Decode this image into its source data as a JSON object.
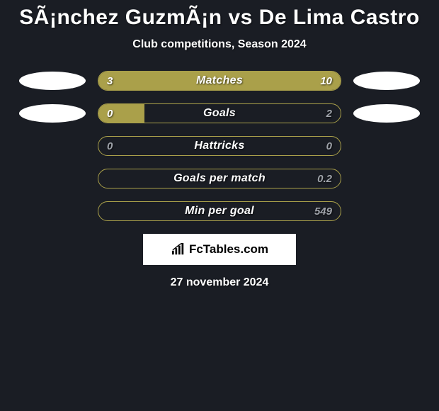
{
  "title": "SÃ¡nchez GuzmÃ¡n vs De Lima Castro",
  "subtitle": "Club competitions, Season 2024",
  "theme": {
    "background": "#1a1d24",
    "bar_border": "#aaa04a",
    "bar_fill": "#aaa04a",
    "text_color": "#ffffff",
    "value_on_fill_color": "#ffffff",
    "value_on_empty_color": "#9fa3aa"
  },
  "avatars": {
    "left_color": "#ffffff",
    "right_color": "#ffffff"
  },
  "rows": [
    {
      "label": "Matches",
      "left_value": "3",
      "right_value": "10",
      "left_fill_pct": 100,
      "right_fill_pct": 0,
      "left_val_color": "#ffffff",
      "right_val_color": "#ffffff",
      "show_avatars": true
    },
    {
      "label": "Goals",
      "left_value": "0",
      "right_value": "2",
      "left_fill_pct": 19,
      "right_fill_pct": 0,
      "left_val_color": "#ffffff",
      "right_val_color": "#9fa3aa",
      "show_avatars": true
    },
    {
      "label": "Hattricks",
      "left_value": "0",
      "right_value": "0",
      "left_fill_pct": 0,
      "right_fill_pct": 0,
      "left_val_color": "#9fa3aa",
      "right_val_color": "#9fa3aa",
      "show_avatars": false
    },
    {
      "label": "Goals per match",
      "left_value": "",
      "right_value": "0.2",
      "left_fill_pct": 0,
      "right_fill_pct": 0,
      "left_val_color": "#9fa3aa",
      "right_val_color": "#9fa3aa",
      "show_avatars": false
    },
    {
      "label": "Min per goal",
      "left_value": "",
      "right_value": "549",
      "left_fill_pct": 0,
      "right_fill_pct": 0,
      "left_val_color": "#9fa3aa",
      "right_val_color": "#9fa3aa",
      "show_avatars": false
    }
  ],
  "source": {
    "text": "FcTables.com",
    "icon_name": "bar-chart-icon"
  },
  "date": "27 november 2024"
}
